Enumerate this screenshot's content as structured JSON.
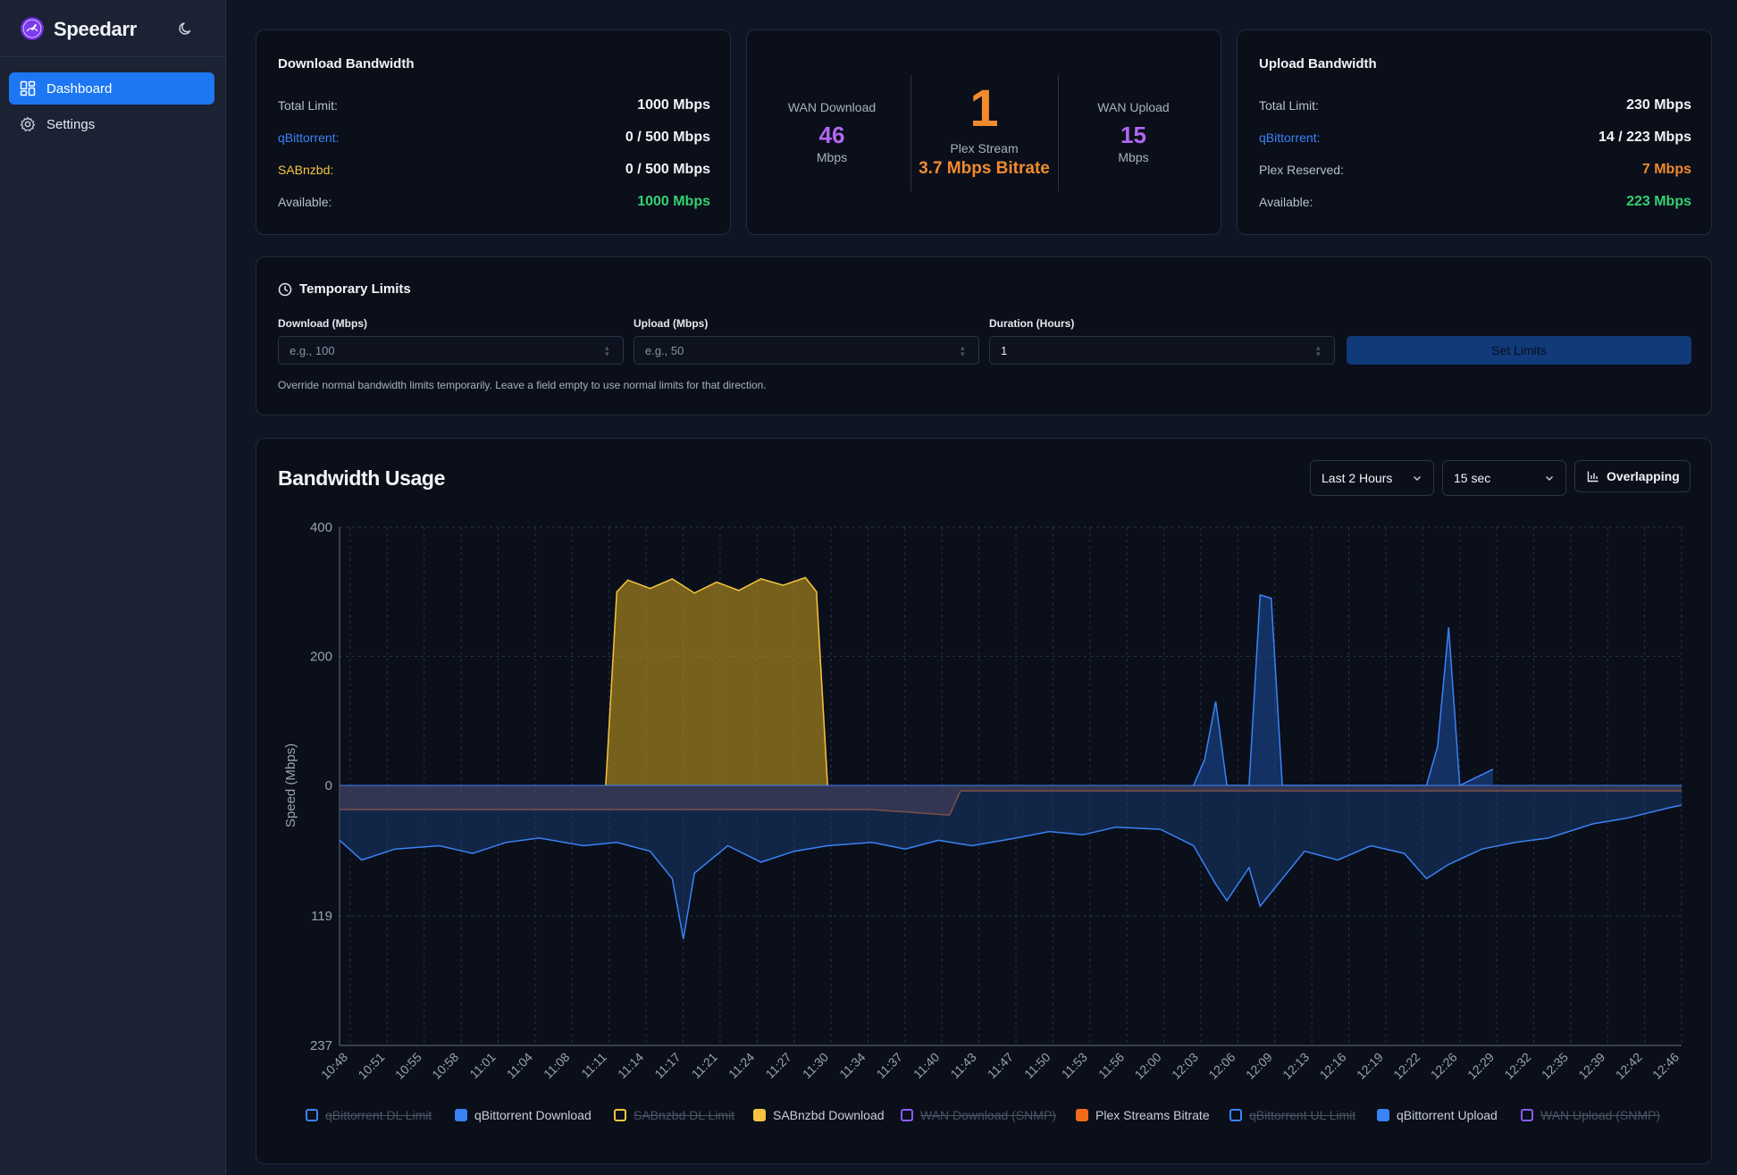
{
  "app": {
    "name": "Speedarr"
  },
  "sidebar": {
    "items": [
      {
        "label": "Dashboard",
        "icon": "dashboard-icon",
        "active": true
      },
      {
        "label": "Settings",
        "icon": "gear-icon",
        "active": false
      }
    ]
  },
  "download_card": {
    "title": "Download Bandwidth",
    "rows": [
      {
        "label": "Total Limit:",
        "value": "1000 Mbps",
        "label_color": "#b8bfcc",
        "value_color": "#f3f4f8"
      },
      {
        "label": "qBittorrent:",
        "value": "0 / 500 Mbps",
        "label_color": "#3b82f6",
        "value_color": "#f3f4f8"
      },
      {
        "label": "SABnzbd:",
        "value": "0 / 500 Mbps",
        "label_color": "#f5c542",
        "value_color": "#f3f4f8"
      },
      {
        "label": "Available:",
        "value": "1000 Mbps",
        "label_color": "#b8bfcc",
        "value_color": "#34d073"
      }
    ]
  },
  "wan_card": {
    "download": {
      "label": "WAN Download",
      "value": "46",
      "unit": "Mbps"
    },
    "plex": {
      "count": "1",
      "label": "Plex Stream",
      "bitrate": "3.7 Mbps Bitrate"
    },
    "upload": {
      "label": "WAN Upload",
      "value": "15",
      "unit": "Mbps"
    }
  },
  "upload_card": {
    "title": "Upload Bandwidth",
    "rows": [
      {
        "label": "Total Limit:",
        "value": "230 Mbps",
        "label_color": "#b8bfcc",
        "value_color": "#f3f4f8"
      },
      {
        "label": "qBittorrent:",
        "value": "14 / 223 Mbps",
        "label_color": "#3b82f6",
        "value_color": "#f3f4f8"
      },
      {
        "label": "Plex Reserved:",
        "value": "7 Mbps",
        "label_color": "#b8bfcc",
        "value_color": "#f28a2e"
      },
      {
        "label": "Available:",
        "value": "223 Mbps",
        "label_color": "#b8bfcc",
        "value_color": "#34d073"
      }
    ]
  },
  "temp_limits": {
    "title": "Temporary Limits",
    "download_label": "Download (Mbps)",
    "download_placeholder": "e.g., 100",
    "upload_label": "Upload (Mbps)",
    "upload_placeholder": "e.g., 50",
    "duration_label": "Duration (Hours)",
    "duration_value": "1",
    "button": "Set Limits",
    "hint": "Override normal bandwidth limits temporarily. Leave a field empty to use normal limits for that direction."
  },
  "usage": {
    "title": "Bandwidth Usage",
    "range_select": "Last 2 Hours",
    "interval_select": "15 sec",
    "mode_button": "Overlapping"
  },
  "colors": {
    "accent": "#1d77f2",
    "qbit": "#3b82f6",
    "sab": "#f5c542",
    "plex": "#f28a2e",
    "wan": "#b267f0",
    "green": "#34d073"
  },
  "chart_data": {
    "type": "area",
    "ylabel": "Speed (Mbps)",
    "xlabel": "",
    "ylim_download": [
      0,
      400
    ],
    "ylim_upload": [
      0,
      237
    ],
    "y_tick_labels_top": [
      "400",
      "200",
      "0"
    ],
    "y_tick_labels_bottom": [
      "119",
      "237"
    ],
    "x_labels": [
      "10:48",
      "10:51",
      "10:55",
      "10:58",
      "11:01",
      "11:04",
      "11:08",
      "11:11",
      "11:14",
      "11:17",
      "11:21",
      "11:24",
      "11:27",
      "11:30",
      "11:34",
      "11:37",
      "11:40",
      "11:43",
      "11:47",
      "11:50",
      "11:53",
      "11:56",
      "12:00",
      "12:03",
      "12:06",
      "12:09",
      "12:13",
      "12:16",
      "12:19",
      "12:22",
      "12:26",
      "12:29",
      "12:32",
      "12:35",
      "12:39",
      "12:42",
      "12:46"
    ],
    "grid": true,
    "legend_position": "bottom",
    "legend": [
      {
        "name": "qBittorrent DL Limit",
        "color": "#3b82f6",
        "hidden": true
      },
      {
        "name": "qBittorrent Download",
        "color": "#3b82f6",
        "hidden": false
      },
      {
        "name": "SABnzbd DL Limit",
        "color": "#f5c542",
        "hidden": true
      },
      {
        "name": "SABnzbd Download",
        "color": "#f5c542",
        "hidden": false
      },
      {
        "name": "WAN Download (SNMP)",
        "color": "#8b5cf6",
        "hidden": true
      },
      {
        "name": "Plex Streams Bitrate",
        "color": "#f26b1d",
        "hidden": false
      },
      {
        "name": "qBittorrent UL Limit",
        "color": "#3b82f6",
        "hidden": true
      },
      {
        "name": "qBittorrent Upload",
        "color": "#3b82f6",
        "hidden": false
      },
      {
        "name": "WAN Upload (SNMP)",
        "color": "#8b5cf6",
        "hidden": true
      }
    ],
    "series": [
      {
        "name": "SABnzbd Download",
        "direction": "download",
        "x": [
          "11:10",
          "11:11",
          "11:12",
          "11:14",
          "11:16",
          "11:18",
          "11:20",
          "11:22",
          "11:24",
          "11:26",
          "11:28",
          "11:29",
          "11:30"
        ],
        "values": [
          0,
          300,
          318,
          305,
          320,
          298,
          315,
          302,
          320,
          310,
          322,
          300,
          0
        ]
      },
      {
        "name": "qBittorrent Download",
        "direction": "download",
        "x": [
          "12:03",
          "12:04",
          "12:05",
          "12:06",
          "12:08",
          "12:09",
          "12:10",
          "12:11",
          "12:24",
          "12:25",
          "12:26",
          "12:27",
          "12:30"
        ],
        "values": [
          0,
          40,
          130,
          0,
          0,
          295,
          290,
          0,
          0,
          60,
          245,
          0,
          25
        ]
      },
      {
        "name": "Plex Streams Bitrate",
        "direction": "upload",
        "x": [
          "10:46",
          "11:34",
          "11:41",
          "11:42",
          "12:47"
        ],
        "values": [
          22,
          22,
          27,
          5,
          5
        ]
      },
      {
        "name": "qBittorrent Upload",
        "direction": "upload",
        "x": [
          "10:46",
          "10:48",
          "10:51",
          "10:55",
          "10:58",
          "11:01",
          "11:04",
          "11:08",
          "11:11",
          "11:14",
          "11:16",
          "11:17",
          "11:18",
          "11:21",
          "11:24",
          "11:27",
          "11:30",
          "11:34",
          "11:37",
          "11:40",
          "11:43",
          "11:47",
          "11:50",
          "11:53",
          "11:56",
          "12:00",
          "12:03",
          "12:05",
          "12:06",
          "12:08",
          "12:09",
          "12:13",
          "12:16",
          "12:19",
          "12:22",
          "12:24",
          "12:26",
          "12:29",
          "12:32",
          "12:35",
          "12:39",
          "12:42",
          "12:46",
          "12:47"
        ],
        "values": [
          50,
          68,
          58,
          55,
          62,
          52,
          48,
          55,
          52,
          60,
          85,
          140,
          80,
          55,
          70,
          60,
          55,
          52,
          58,
          50,
          55,
          48,
          42,
          45,
          38,
          40,
          55,
          90,
          105,
          75,
          110,
          60,
          68,
          55,
          62,
          85,
          72,
          58,
          52,
          48,
          35,
          30,
          20,
          18
        ]
      }
    ]
  }
}
